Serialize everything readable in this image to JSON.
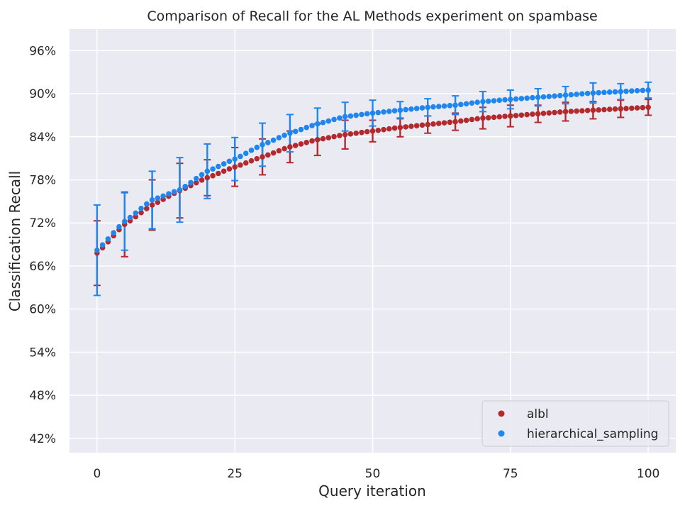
{
  "chart_data": {
    "type": "scatter",
    "title": "Comparison of Recall for the AL Methods experiment on spambase",
    "xlabel": "Query iteration",
    "ylabel": "Classification Recall",
    "xlim": [
      -5,
      105
    ],
    "ylim": [
      0.4,
      0.99
    ],
    "xticks": [
      0,
      25,
      50,
      75,
      100
    ],
    "xtick_labels": [
      "0",
      "25",
      "50",
      "75",
      "100"
    ],
    "yticks": [
      0.42,
      0.48,
      0.54,
      0.6,
      0.66,
      0.72,
      0.78,
      0.84,
      0.9,
      0.96
    ],
    "ytick_labels": [
      "42%",
      "48%",
      "54%",
      "60%",
      "66%",
      "72%",
      "78%",
      "84%",
      "90%",
      "96%"
    ],
    "grid": true,
    "legend_position": "lower-right",
    "error_bar_every": 5,
    "series": [
      {
        "name": "albl",
        "color": "#b22a2e",
        "anchors": [
          [
            0,
            0.678
          ],
          [
            5,
            0.718
          ],
          [
            10,
            0.745
          ],
          [
            15,
            0.765
          ],
          [
            20,
            0.783
          ],
          [
            25,
            0.798
          ],
          [
            30,
            0.812
          ],
          [
            35,
            0.826
          ],
          [
            40,
            0.836
          ],
          [
            45,
            0.843
          ],
          [
            50,
            0.848
          ],
          [
            55,
            0.853
          ],
          [
            60,
            0.857
          ],
          [
            65,
            0.861
          ],
          [
            70,
            0.866
          ],
          [
            75,
            0.869
          ],
          [
            80,
            0.872
          ],
          [
            85,
            0.875
          ],
          [
            90,
            0.877
          ],
          [
            95,
            0.879
          ],
          [
            100,
            0.881
          ]
        ],
        "errors": [
          [
            0,
            0.045
          ],
          [
            5,
            0.045
          ],
          [
            10,
            0.035
          ],
          [
            15,
            0.038
          ],
          [
            20,
            0.025
          ],
          [
            25,
            0.027
          ],
          [
            30,
            0.025
          ],
          [
            35,
            0.022
          ],
          [
            40,
            0.022
          ],
          [
            45,
            0.02
          ],
          [
            50,
            0.015
          ],
          [
            55,
            0.013
          ],
          [
            60,
            0.012
          ],
          [
            65,
            0.012
          ],
          [
            70,
            0.015
          ],
          [
            75,
            0.015
          ],
          [
            80,
            0.012
          ],
          [
            85,
            0.013
          ],
          [
            90,
            0.012
          ],
          [
            95,
            0.012
          ],
          [
            100,
            0.011
          ]
        ]
      },
      {
        "name": "hierarchical_sampling",
        "color": "#1f86f0",
        "anchors": [
          [
            0,
            0.682
          ],
          [
            5,
            0.722
          ],
          [
            10,
            0.752
          ],
          [
            15,
            0.766
          ],
          [
            20,
            0.792
          ],
          [
            25,
            0.809
          ],
          [
            30,
            0.829
          ],
          [
            35,
            0.845
          ],
          [
            40,
            0.858
          ],
          [
            45,
            0.868
          ],
          [
            50,
            0.873
          ],
          [
            55,
            0.877
          ],
          [
            60,
            0.881
          ],
          [
            65,
            0.884
          ],
          [
            70,
            0.889
          ],
          [
            75,
            0.892
          ],
          [
            80,
            0.895
          ],
          [
            85,
            0.898
          ],
          [
            90,
            0.901
          ],
          [
            95,
            0.903
          ],
          [
            100,
            0.905
          ]
        ],
        "errors": [
          [
            0,
            0.063
          ],
          [
            5,
            0.04
          ],
          [
            10,
            0.04
          ],
          [
            15,
            0.045
          ],
          [
            20,
            0.038
          ],
          [
            25,
            0.03
          ],
          [
            30,
            0.03
          ],
          [
            35,
            0.026
          ],
          [
            40,
            0.022
          ],
          [
            45,
            0.02
          ],
          [
            50,
            0.018
          ],
          [
            55,
            0.012
          ],
          [
            60,
            0.012
          ],
          [
            65,
            0.013
          ],
          [
            70,
            0.014
          ],
          [
            75,
            0.013
          ],
          [
            80,
            0.012
          ],
          [
            85,
            0.012
          ],
          [
            90,
            0.014
          ],
          [
            95,
            0.011
          ],
          [
            100,
            0.011
          ]
        ]
      }
    ]
  }
}
